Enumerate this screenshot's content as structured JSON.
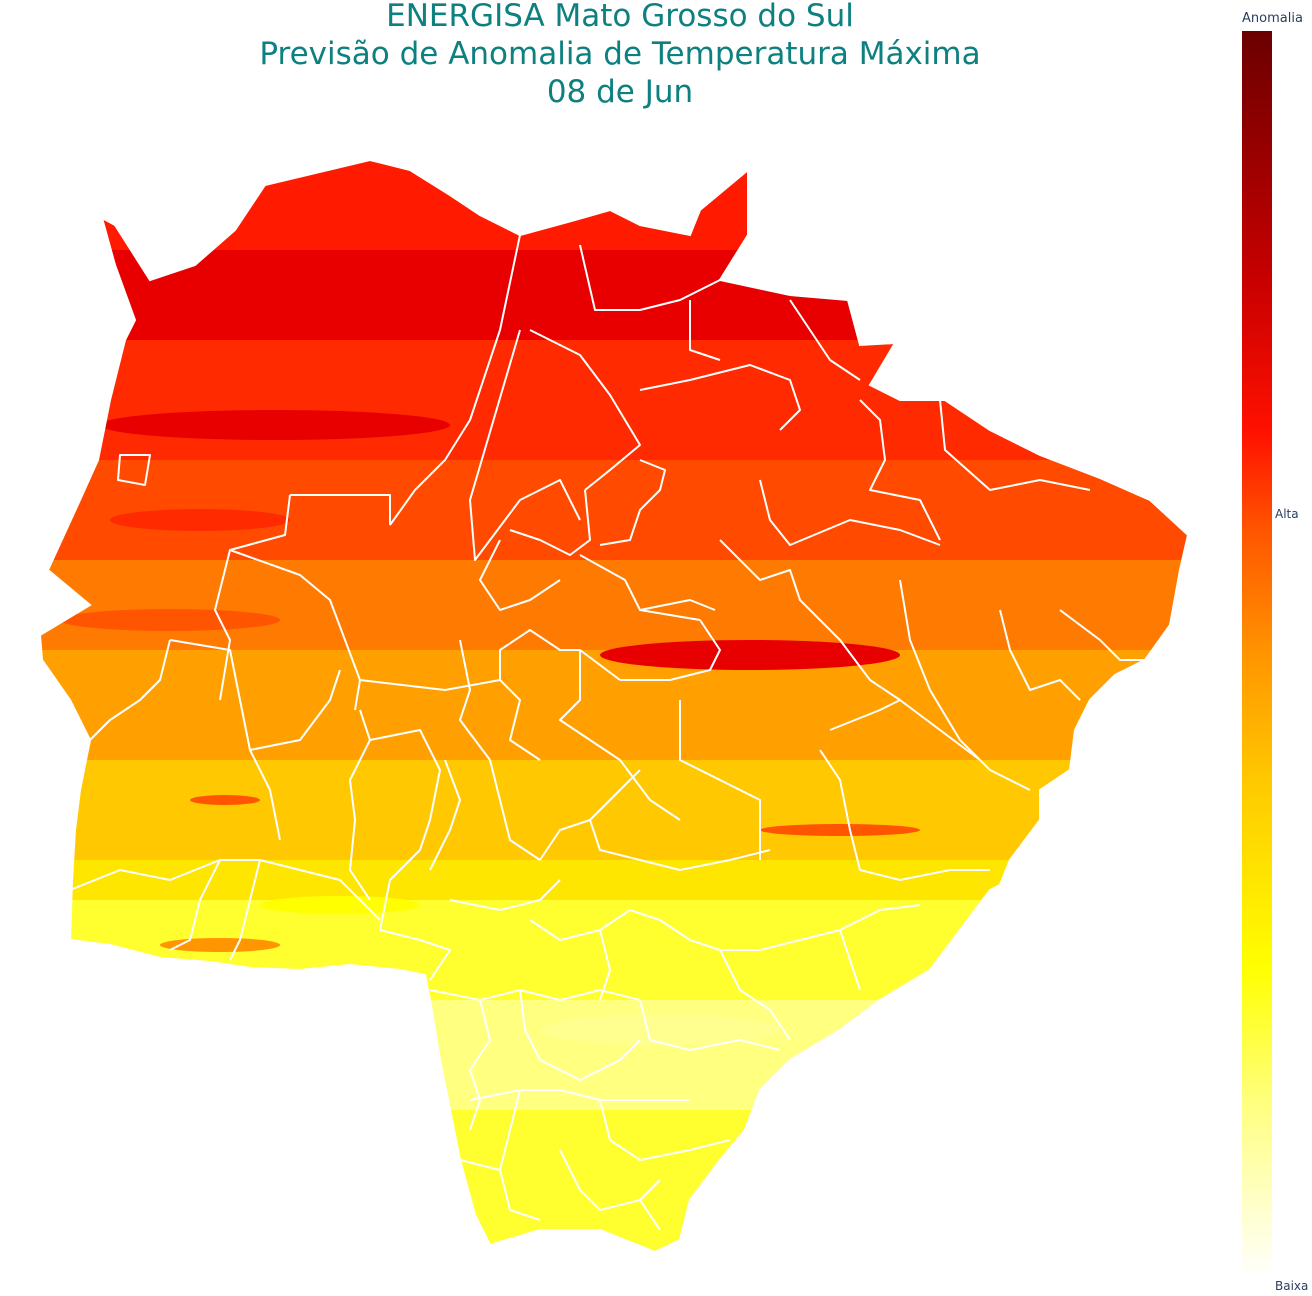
{
  "title": {
    "line1": "ENERGISA Mato Grosso do Sul",
    "line2": "Previsão de Anomalia de Temperatura Máxima",
    "line3": "08 de Jun"
  },
  "colorbar": {
    "title": "Anomalia",
    "label_high": "Alta",
    "label_low": "Baixa",
    "colors": [
      "#6b0000",
      "#c80000",
      "#ff1000",
      "#ff5500",
      "#ff9500",
      "#ffc800",
      "#ffff00",
      "#ffff80",
      "#ffffff"
    ]
  },
  "map": {
    "border_color": "#ffffff",
    "band_colors": [
      "#ff1a00",
      "#e80000",
      "#ff2a00",
      "#ff4a00",
      "#ff7a00",
      "#ffa000",
      "#ffc800",
      "#ffe600",
      "#ffff30",
      "#ffff80",
      "#ffff30"
    ]
  }
}
